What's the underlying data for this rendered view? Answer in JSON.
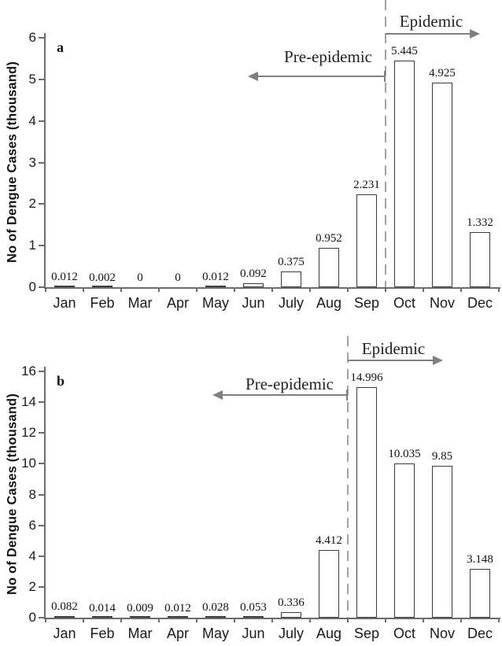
{
  "figure": {
    "ylabel": "No of Dengue Cases (thousand)"
  },
  "chart_data": [
    {
      "type": "bar",
      "panel_label": "a",
      "title": "",
      "xlabel": "",
      "ylabel": "No of Dengue Cases (thousand)",
      "categories": [
        "Jan",
        "Feb",
        "Mar",
        "Apr",
        "May",
        "Jun",
        "July",
        "Aug",
        "Sep",
        "Oct",
        "Nov",
        "Dec"
      ],
      "values": [
        0.012,
        0.002,
        0,
        0,
        0.012,
        0.092,
        0.375,
        0.952,
        2.231,
        5.445,
        4.925,
        1.332
      ],
      "value_labels": [
        "0.012",
        "0.002",
        "0",
        "0",
        "0.012",
        "0.092",
        "0.375",
        "0.952",
        "2.231",
        "5.445",
        "4.925",
        "1.332"
      ],
      "ylim": [
        0,
        6
      ],
      "ytick_step": 1,
      "grid": false,
      "bar_fill": "#ffffff",
      "bar_border": "#3c3c3c",
      "divider": {
        "style": "dashed",
        "between": [
          "Sep",
          "Oct"
        ]
      },
      "annotations": [
        {
          "text": "Pre-epidemic",
          "direction": "left"
        },
        {
          "text": "Epidemic",
          "direction": "right"
        }
      ]
    },
    {
      "type": "bar",
      "panel_label": "b",
      "title": "",
      "xlabel": "",
      "ylabel": "No of Dengue Cases (thousand)",
      "categories": [
        "Jan",
        "Feb",
        "Mar",
        "Apr",
        "May",
        "Jun",
        "July",
        "Aug",
        "Sep",
        "Oct",
        "Nov",
        "Dec"
      ],
      "values": [
        0.082,
        0.014,
        0.009,
        0.012,
        0.028,
        0.053,
        0.336,
        4.412,
        14.996,
        10.035,
        9.85,
        3.148
      ],
      "value_labels": [
        "0.082",
        "0.014",
        "0.009",
        "0.012",
        "0.028",
        "0.053",
        "0.336",
        "4.412",
        "14.996",
        "10.035",
        "9.85",
        "3.148"
      ],
      "ylim": [
        0,
        16
      ],
      "ytick_step": 2,
      "grid": false,
      "bar_fill": "#ffffff",
      "bar_border": "#3c3c3c",
      "divider": {
        "style": "dashed",
        "between": [
          "Aug",
          "Sep"
        ]
      },
      "annotations": [
        {
          "text": "Pre-epidemic",
          "direction": "left"
        },
        {
          "text": "Epidemic",
          "direction": "right"
        }
      ]
    }
  ]
}
